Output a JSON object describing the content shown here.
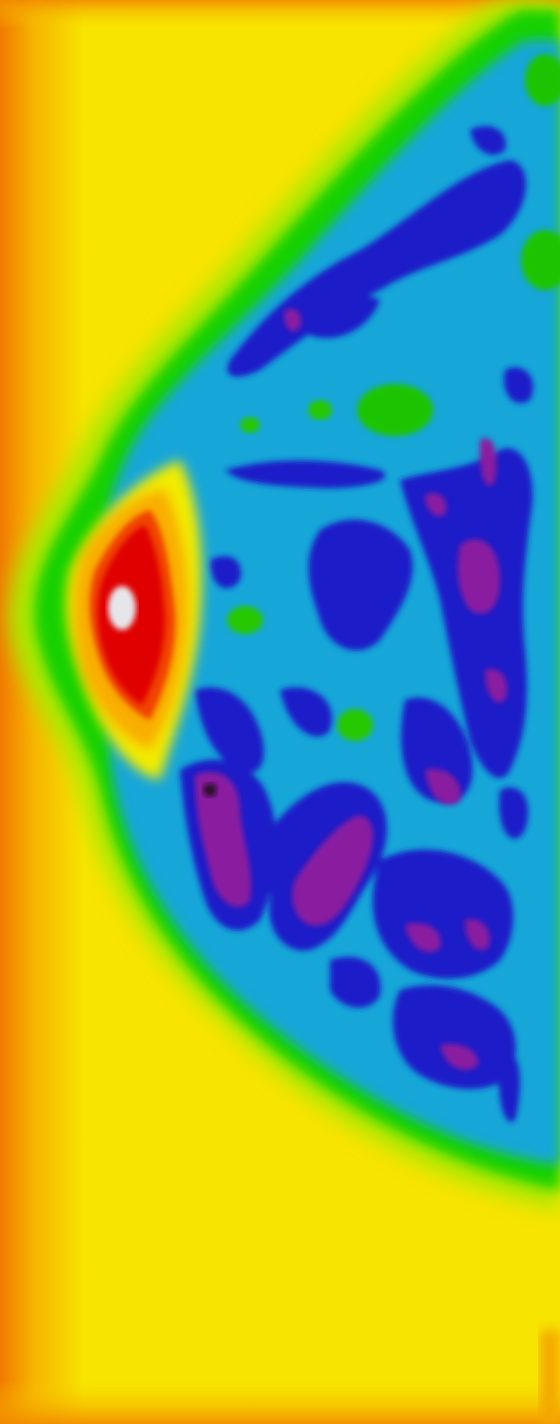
{
  "image": {
    "kind": "false-color heat map of a curved body region",
    "palette": {
      "background_yellow": "#f7e400",
      "edge_orange": "#f59a00",
      "border_green": "#19d100",
      "interior_cyan": "#14a6d8",
      "interior_blue": "#1a1fc8",
      "hot_violet": "#8a1aa0",
      "hot_red": "#e00000",
      "peak_white": "#e6e6ea"
    }
  }
}
